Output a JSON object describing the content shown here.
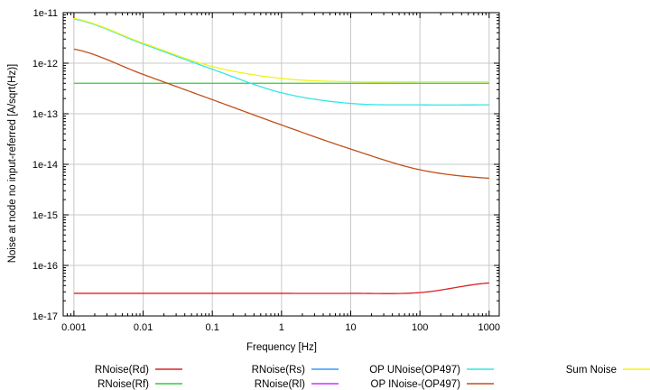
{
  "chart_data": {
    "type": "line",
    "title": "",
    "xlabel": "Frequency [Hz]",
    "ylabel": "Noise at node no input-referred [A/sqrt(Hz)]",
    "xscale": "log",
    "yscale": "log",
    "xlim": [
      0.0007,
      1400
    ],
    "ylim": [
      1e-17,
      1e-11
    ],
    "grid": true,
    "legend_position": "bottom",
    "xticks": [
      {
        "v": 0.001,
        "label": "0.001"
      },
      {
        "v": 0.01,
        "label": "0.01"
      },
      {
        "v": 0.1,
        "label": "0.1"
      },
      {
        "v": 1,
        "label": "1"
      },
      {
        "v": 10,
        "label": "10"
      },
      {
        "v": 100,
        "label": "100"
      },
      {
        "v": 1000,
        "label": "1000"
      }
    ],
    "yticks": [
      {
        "v": 1e-17,
        "label": "1e-17"
      },
      {
        "v": 1e-16,
        "label": "1e-16"
      },
      {
        "v": 1e-15,
        "label": "1e-15"
      },
      {
        "v": 1e-14,
        "label": "1e-14"
      },
      {
        "v": 1e-13,
        "label": "1e-13"
      },
      {
        "v": 1e-12,
        "label": "1e-12"
      },
      {
        "v": 1e-11,
        "label": "1e-11"
      }
    ],
    "x": [
      0.001,
      0.01,
      0.1,
      1,
      10,
      100,
      1000
    ],
    "series": [
      {
        "name": "RNoise(Rd)",
        "color": "#dd2222",
        "values": [
          2.8e-17,
          2.8e-17,
          2.8e-17,
          2.8e-17,
          2.8e-17,
          2.9e-17,
          4.5e-17
        ]
      },
      {
        "name": "RNoise(Rf)",
        "color": "#33cc33",
        "values": [
          4e-13,
          4e-13,
          4e-13,
          4e-13,
          4e-13,
          4e-13,
          4e-13
        ]
      },
      {
        "name": "RNoise(Rs)",
        "color": "#3399ff",
        "values": [
          null,
          null,
          null,
          null,
          null,
          null,
          null
        ]
      },
      {
        "name": "RNoise(Rl)",
        "color": "#cc33ff",
        "values": [
          null,
          null,
          null,
          null,
          null,
          null,
          null
        ]
      },
      {
        "name": "OP UNoise(OP497)",
        "color": "#33e6e6",
        "values": [
          7.5e-12,
          2.4e-12,
          7.6e-13,
          2.6e-13,
          1.6e-13,
          1.5e-13,
          1.5e-13
        ]
      },
      {
        "name": "OP INoise-(OP497)",
        "color": "#c0501a",
        "values": [
          1.9e-12,
          6e-13,
          1.9e-13,
          6e-14,
          2e-14,
          7.8e-15,
          5.3e-15
        ]
      },
      {
        "name": "Sum Noise",
        "color": "#f2f21a",
        "values": [
          7.7e-12,
          2.5e-12,
          8.6e-13,
          5e-13,
          4.3e-13,
          4.3e-13,
          4.3e-13
        ]
      }
    ]
  }
}
